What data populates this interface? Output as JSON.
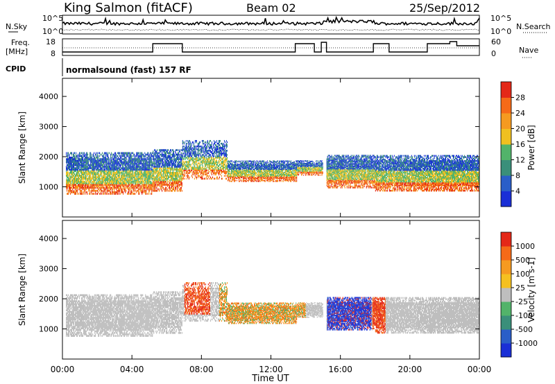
{
  "header": {
    "station": "King Salmon (fitACF)",
    "beam": "Beam 02",
    "date": "25/Sep/2012"
  },
  "meta_panels": {
    "nsky_label": "N.Sky",
    "nsearch_label": "N.Search",
    "noise_ticks": [
      "10^5",
      "10^0"
    ],
    "freq_label_line1": "Freq.",
    "freq_label_line2": "[MHz]",
    "freq_ticks": [
      "18",
      "8"
    ],
    "nave_label": "Nave",
    "nave_ticks": [
      "60",
      "0"
    ],
    "cpid_label": "CPID",
    "cpid_text": "normalsound (fast) 157 RF"
  },
  "colors": {
    "power_scale": [
      "#1a2fd6",
      "#2a5ec8",
      "#3a8f7a",
      "#52b36a",
      "#f0c020",
      "#f59a20",
      "#f56a18",
      "#e42818"
    ],
    "velocity_scale": [
      "#1a2fd6",
      "#2a5ec8",
      "#3a8f7a",
      "#52b36a",
      "#bebebe",
      "#f5c020",
      "#f59a20",
      "#f56a18",
      "#e42818"
    ]
  },
  "chart_data": [
    {
      "type": "heatmap",
      "name": "power",
      "ylabel": "Slant Range [km]",
      "yticks": [
        "1000",
        "2000",
        "3000",
        "4000"
      ],
      "ylim": [
        0,
        4600
      ],
      "colorbar_label": "Power [dB]",
      "colorbar_ticks": [
        "4",
        "8",
        "12",
        "16",
        "20",
        "24",
        "28"
      ],
      "colorbar_range": [
        0,
        32
      ]
    },
    {
      "type": "heatmap",
      "name": "velocity",
      "ylabel": "Slant Range [km]",
      "yticks": [
        "1000",
        "2000",
        "3000",
        "4000"
      ],
      "ylim": [
        0,
        4600
      ],
      "colorbar_label": "Velocity [m s-1]",
      "colorbar_ticks": [
        "1000",
        "500",
        "100",
        "25",
        "-25",
        "-100",
        "-500",
        "-1000"
      ]
    }
  ],
  "xaxis": {
    "label": "Time UT",
    "ticks": [
      "00:00",
      "04:00",
      "08:00",
      "12:00",
      "16:00",
      "20:00",
      "00:00"
    ]
  }
}
